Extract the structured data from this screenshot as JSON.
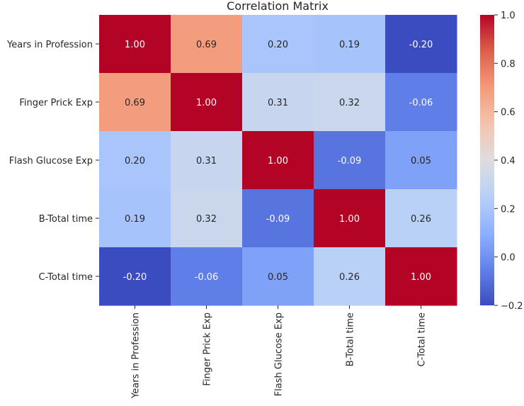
{
  "chart_data": {
    "type": "heatmap",
    "title": "Correlation Matrix",
    "row_labels": [
      "Years in Profession",
      "Finger Prick Exp",
      "Flash Glucose Exp",
      "B-Total time",
      "C-Total time"
    ],
    "col_labels": [
      "Years in Profession",
      "Finger Prick Exp",
      "Flash Glucose Exp",
      "B-Total time",
      "C-Total time"
    ],
    "values": [
      [
        1.0,
        0.69,
        0.2,
        0.19,
        -0.2
      ],
      [
        0.69,
        1.0,
        0.31,
        0.32,
        -0.06
      ],
      [
        0.2,
        0.31,
        1.0,
        -0.09,
        0.05
      ],
      [
        0.19,
        0.32,
        -0.09,
        1.0,
        0.26
      ],
      [
        -0.2,
        -0.06,
        0.05,
        0.26,
        1.0
      ]
    ],
    "value_format": "0.00",
    "colormap": "coolwarm",
    "vmin": -0.2,
    "vmax": 1.0,
    "colorbar_ticks": [
      1.0,
      0.8,
      0.6,
      0.4,
      0.2,
      0.0,
      -0.2
    ],
    "colorbar_tick_labels": [
      "1.0",
      "0.8",
      "0.6",
      "0.4",
      "0.2",
      "0.0",
      "−0.2"
    ],
    "xlabel": "",
    "ylabel": ""
  }
}
